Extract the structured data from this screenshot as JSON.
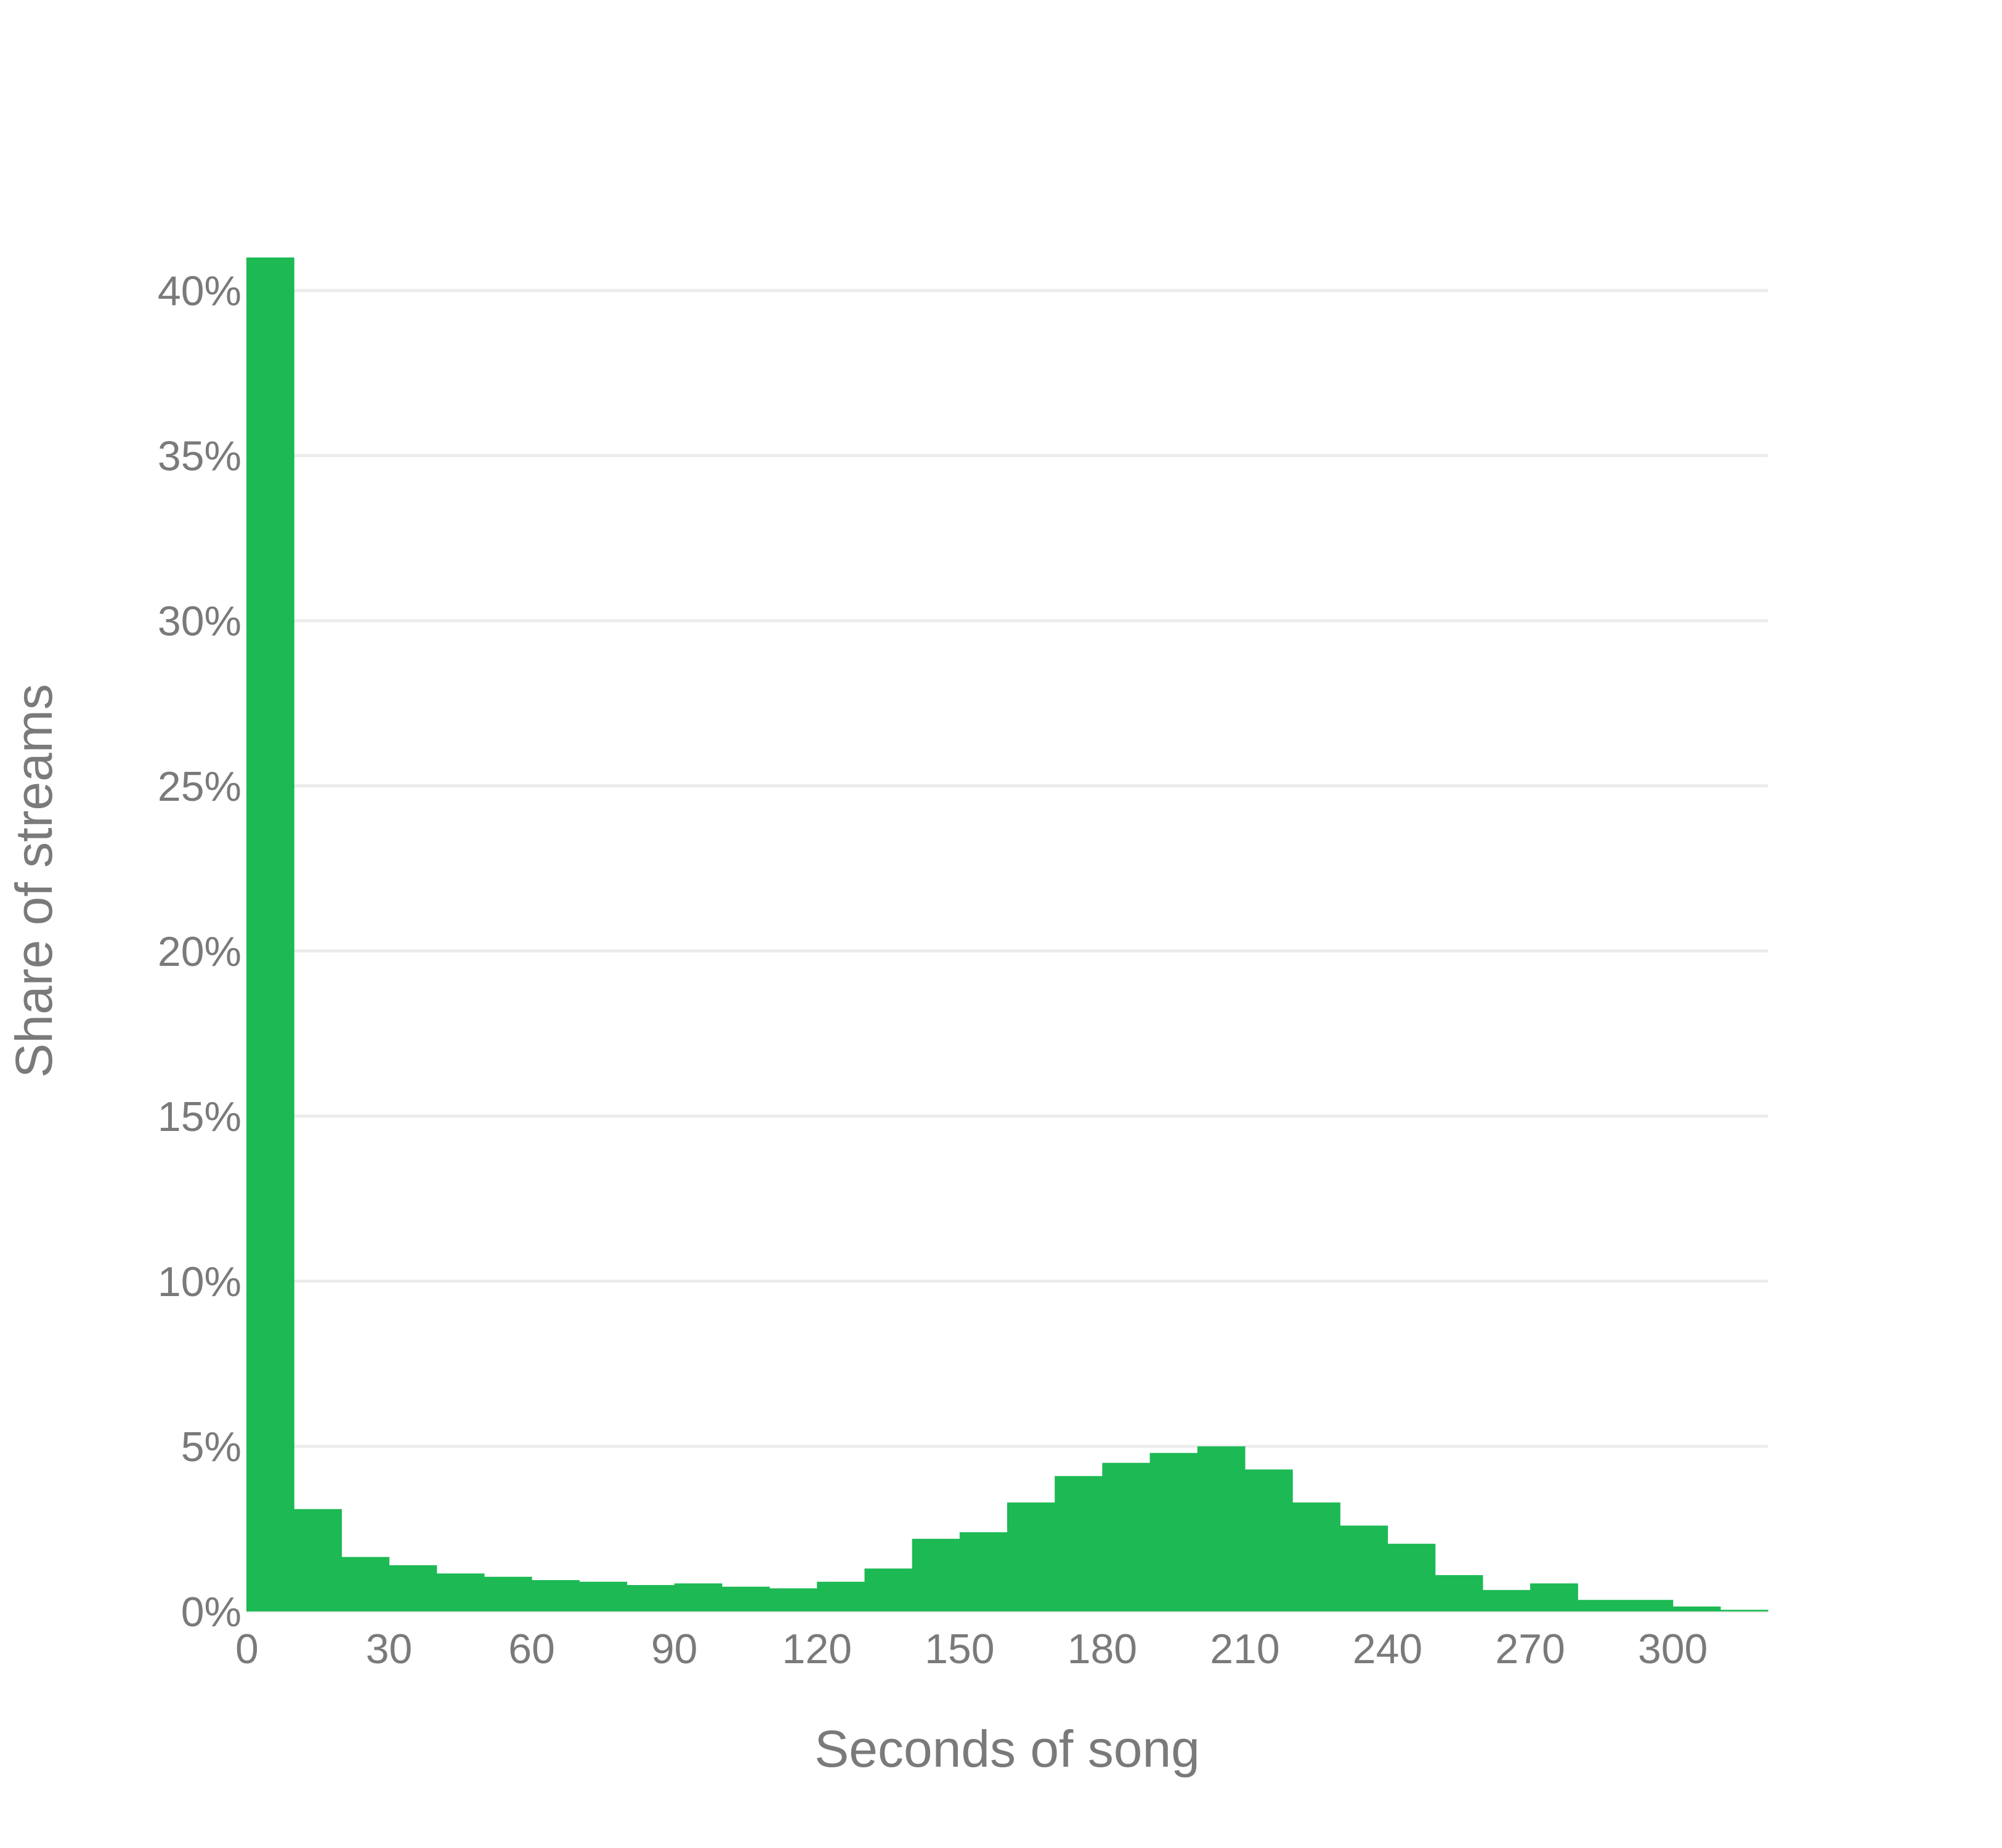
{
  "chart_data": {
    "type": "bar",
    "xlabel": "Seconds of song",
    "ylabel": "Share of streams",
    "bin_width": 10,
    "xlim": [
      0,
      320
    ],
    "ylim": [
      0,
      41
    ],
    "x_ticks": [
      0,
      30,
      60,
      90,
      120,
      150,
      180,
      210,
      240,
      270,
      300
    ],
    "x_tick_labels": [
      "0",
      "30",
      "60",
      "90",
      "120",
      "150",
      "180",
      "210",
      "240",
      "270",
      "300"
    ],
    "y_ticks": [
      0,
      5,
      10,
      15,
      20,
      25,
      30,
      35,
      40
    ],
    "y_tick_labels": [
      "0%",
      "5%",
      "10%",
      "15%",
      "20%",
      "25%",
      "30%",
      "35%",
      "40%"
    ],
    "grid": "horizontal",
    "bins": [
      0,
      10,
      20,
      30,
      40,
      50,
      60,
      70,
      80,
      90,
      100,
      110,
      120,
      130,
      140,
      150,
      160,
      170,
      180,
      190,
      200,
      210,
      220,
      230,
      240,
      250,
      260,
      270,
      280,
      290,
      300,
      310
    ],
    "values": [
      41.0,
      3.1,
      1.65,
      1.4,
      1.15,
      1.05,
      0.95,
      0.9,
      0.8,
      0.85,
      0.75,
      0.7,
      0.9,
      1.3,
      2.2,
      2.4,
      3.3,
      4.1,
      4.5,
      4.8,
      5.0,
      4.3,
      3.3,
      2.6,
      2.05,
      1.1,
      0.65,
      0.85,
      0.35,
      0.35,
      0.15,
      0.05
    ],
    "colors": {
      "bar": "#1db954",
      "grid": "#ececec",
      "text": "#7a7a7a"
    }
  }
}
